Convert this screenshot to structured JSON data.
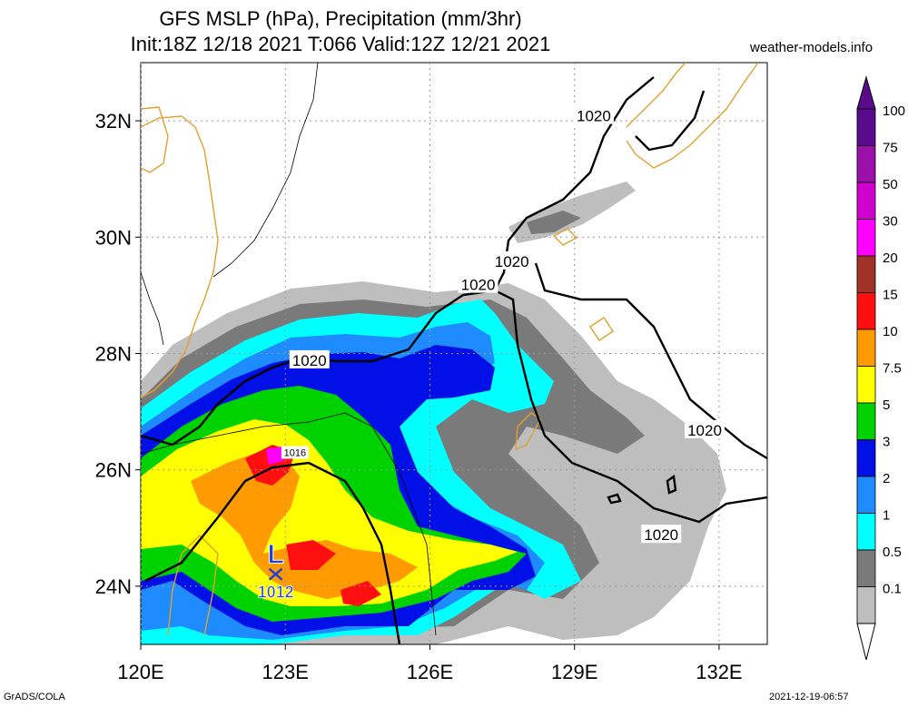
{
  "header": {
    "title_line1": "GFS MSLP (hPa), Precipitation (mm/3hr)",
    "title_line2": "Init:18Z 12/18 2021 T:066 Valid:12Z 12/21 2021",
    "site": "weather-models.info"
  },
  "footer": {
    "left": "GrADS/COLA",
    "right": "2021-12-19-06:57"
  },
  "map": {
    "lon_ticks": [
      {
        "value": 120,
        "label": "120E"
      },
      {
        "value": 123,
        "label": "123E"
      },
      {
        "value": 126,
        "label": "126E"
      },
      {
        "value": 129,
        "label": "129E"
      },
      {
        "value": 132,
        "label": "132E"
      }
    ],
    "lat_ticks": [
      {
        "value": 24,
        "label": "24N"
      },
      {
        "value": 26,
        "label": "26N"
      },
      {
        "value": 28,
        "label": "28N"
      },
      {
        "value": 30,
        "label": "30N"
      },
      {
        "value": 32,
        "label": "32N"
      }
    ],
    "lon_range": [
      120,
      133
    ],
    "lat_range": [
      23,
      33
    ],
    "isobar_labels": [
      {
        "text": "1020",
        "lon": 129.4,
        "lat": 32.1
      },
      {
        "text": "1020",
        "lon": 127.7,
        "lat": 29.6
      },
      {
        "text": "1020",
        "lon": 127.0,
        "lat": 29.2
      },
      {
        "text": "1020",
        "lon": 123.5,
        "lat": 27.9
      },
      {
        "text": "1020",
        "lon": 131.7,
        "lat": 26.7
      },
      {
        "text": "1020",
        "lon": 130.8,
        "lat": 24.9
      },
      {
        "text": "1016",
        "lon": 123.2,
        "lat": 26.3
      }
    ],
    "low_center": {
      "symbol": "L",
      "pressure": "1012",
      "lon": 122.8,
      "lat": 24.3
    },
    "colors": {
      "coast": "#e0a030",
      "isobar": "#000000",
      "low": "#2040d0"
    }
  },
  "legend": {
    "levels": [
      {
        "label": "100",
        "color": "#5a0a8c"
      },
      {
        "label": "75",
        "color": "#9a10a8"
      },
      {
        "label": "50",
        "color": "#d000d0"
      },
      {
        "label": "30",
        "color": "#ff00ff"
      },
      {
        "label": "20",
        "color": "#a03228"
      },
      {
        "label": "15",
        "color": "#ff1010"
      },
      {
        "label": "10",
        "color": "#ff9a00"
      },
      {
        "label": "7.5",
        "color": "#ffff00"
      },
      {
        "label": "5",
        "color": "#00d200"
      },
      {
        "label": "3",
        "color": "#0010e6"
      },
      {
        "label": "2",
        "color": "#1e8cff"
      },
      {
        "label": "1",
        "color": "#00ffff"
      },
      {
        "label": "0.5",
        "color": "#7a7a7a"
      },
      {
        "label": "0.1",
        "color": "#bebebe"
      }
    ]
  }
}
